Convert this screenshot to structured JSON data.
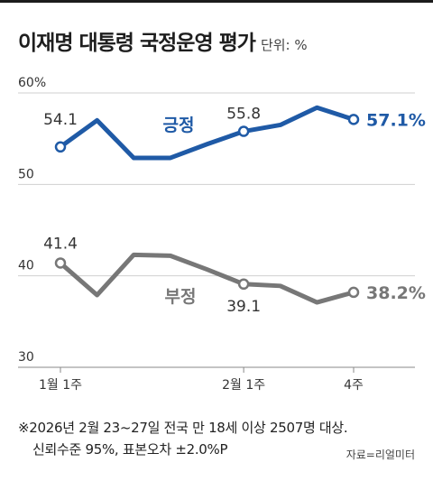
{
  "header": {
    "title": "이재명 대통령 국정운영 평가",
    "unit": "단위: %"
  },
  "chart_data": {
    "type": "line",
    "ylim": [
      30,
      60
    ],
    "y_ticks": [
      "60%",
      "50",
      "40",
      "30"
    ],
    "x": [
      0,
      1,
      2,
      3,
      4,
      5,
      6,
      7,
      8
    ],
    "x_tick_labels": [
      {
        "index": 0,
        "label": "1월 1주"
      },
      {
        "index": 5,
        "label": "2월 1주"
      },
      {
        "index": 8,
        "label": "4주"
      }
    ],
    "series": [
      {
        "name": "긍정",
        "color": "#1f5aa6",
        "values": [
          54.1,
          57.0,
          52.9,
          52.9,
          54.4,
          55.8,
          56.5,
          58.4,
          57.1
        ],
        "point_labels": [
          {
            "index": 0,
            "text": "54.1"
          },
          {
            "index": 5,
            "text": "55.8"
          },
          {
            "index": 8,
            "text": "57.1%"
          }
        ]
      },
      {
        "name": "부정",
        "color": "#777777",
        "values": [
          41.4,
          37.9,
          42.3,
          42.2,
          40.7,
          39.1,
          38.9,
          37.1,
          38.2
        ],
        "point_labels": [
          {
            "index": 0,
            "text": "41.4"
          },
          {
            "index": 5,
            "text": "39.1"
          },
          {
            "index": 8,
            "text": "38.2%"
          }
        ]
      }
    ]
  },
  "footnote": {
    "line1": "※2026년 2월 23~27일 전국 만 18세 이상 2507명 대상.",
    "line2": "신뢰수준 95%, 표본오차 ±2.0%P"
  },
  "source": "자료=리얼미터"
}
